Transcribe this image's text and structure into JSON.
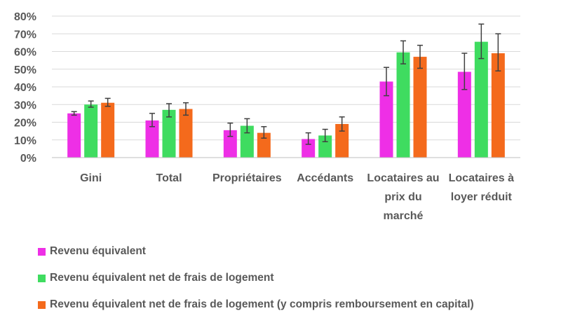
{
  "chart_data": {
    "type": "bar",
    "title": "",
    "xlabel": "",
    "ylabel": "",
    "ylim": [
      0,
      80
    ],
    "ytick_values": [
      0,
      10,
      20,
      30,
      40,
      50,
      60,
      70,
      80
    ],
    "ytick_labels": [
      "0%",
      "10%",
      "20%",
      "30%",
      "40%",
      "50%",
      "60%",
      "70%",
      "80%"
    ],
    "grid": true,
    "legend_position": "bottom",
    "categories": [
      [
        "Gini"
      ],
      [
        "Total"
      ],
      [
        "Propriétaires"
      ],
      [
        "Accédants"
      ],
      [
        "Locataires au",
        "prix du",
        "marché"
      ],
      [
        "Locataires à",
        "loyer réduit"
      ]
    ],
    "series": [
      {
        "name": "Revenu équivalent",
        "color": "#ee2fe6",
        "values": [
          25,
          21,
          15.5,
          10.5,
          43,
          48.5
        ],
        "error_low": [
          24,
          17.5,
          12,
          7.5,
          35,
          38.5
        ],
        "error_high": [
          26,
          25,
          19.5,
          14,
          51,
          59
        ]
      },
      {
        "name": "Revenu équivalent net de frais de logement",
        "color": "#3fdc60",
        "values": [
          30,
          27,
          18,
          12.5,
          59.5,
          65.5
        ],
        "error_low": [
          28.5,
          23,
          14,
          9,
          53,
          56
        ],
        "error_high": [
          32,
          30.5,
          22,
          16,
          66,
          75.5
        ]
      },
      {
        "name": "Revenu équivalent net de frais de logement (y compris remboursement en capital)",
        "color": "#f46a1c",
        "values": [
          31,
          27.5,
          14,
          19,
          57,
          59
        ],
        "error_low": [
          29,
          24,
          11,
          15,
          50.5,
          49
        ],
        "error_high": [
          33.5,
          31,
          17.5,
          23,
          63.5,
          70
        ]
      }
    ]
  }
}
